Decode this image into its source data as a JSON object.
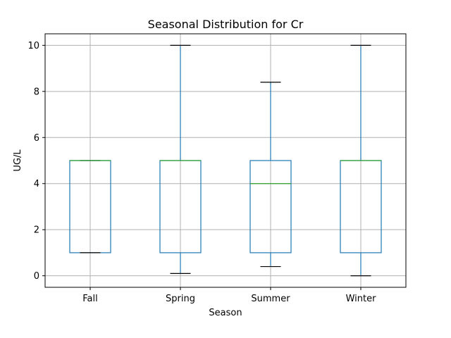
{
  "chart_data": {
    "type": "box",
    "title": "Seasonal Distribution for Cr",
    "xlabel": "Season",
    "ylabel": "UG/L",
    "ylim": [
      -0.5,
      10.5
    ],
    "yticks": [
      0,
      2,
      4,
      6,
      8,
      10
    ],
    "grid": true,
    "categories": [
      "Fall",
      "Spring",
      "Summer",
      "Winter"
    ],
    "boxes": [
      {
        "category": "Fall",
        "whisker_low": 1.0,
        "q1": 1.0,
        "median": 5.0,
        "q3": 5.0,
        "whisker_high": 5.0
      },
      {
        "category": "Spring",
        "whisker_low": 0.1,
        "q1": 1.0,
        "median": 5.0,
        "q3": 5.0,
        "whisker_high": 10.0
      },
      {
        "category": "Summer",
        "whisker_low": 0.4,
        "q1": 1.0,
        "median": 4.0,
        "q3": 5.0,
        "whisker_high": 8.4
      },
      {
        "category": "Winter",
        "whisker_low": 0.0,
        "q1": 1.0,
        "median": 5.0,
        "q3": 5.0,
        "whisker_high": 10.0
      }
    ],
    "colors": {
      "box": "#1f77b4",
      "median": "#2ca02c",
      "whisker_cap": "#000000",
      "grid": "#b0b0b0"
    }
  }
}
